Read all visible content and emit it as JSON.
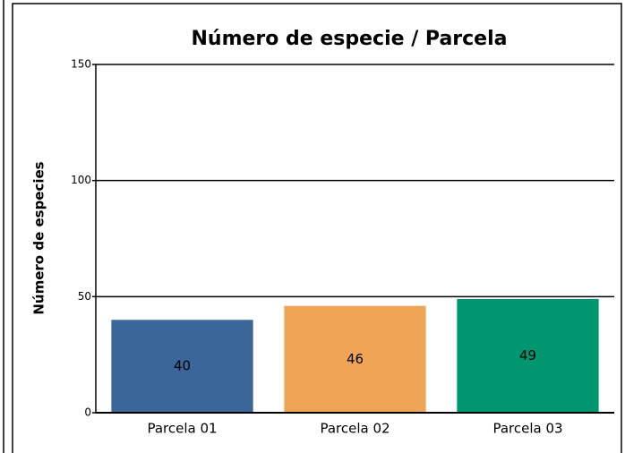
{
  "chart_data": {
    "type": "bar",
    "title": "Número de especie / Parcela",
    "y_label": "Número de especies",
    "categories": [
      "Parcela 01",
      "Parcela 02",
      "Parcela 03"
    ],
    "values": [
      40,
      46,
      49
    ],
    "colors": [
      "#3a6699",
      "#f0a455",
      "#009670"
    ],
    "ylim": [
      0,
      150
    ],
    "yticks": [
      0,
      50,
      100,
      150
    ],
    "grid": true
  }
}
